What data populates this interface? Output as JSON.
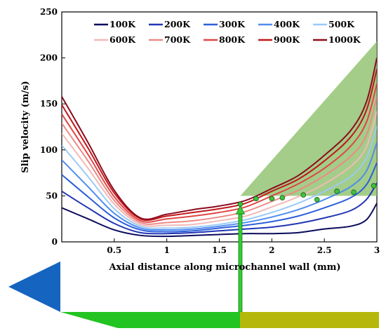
{
  "chart_data": {
    "type": "line",
    "xlabel": "Axial distance along microchannel wall (mm)",
    "ylabel": "Slip velocity (m/s)",
    "xlim": [
      0,
      3
    ],
    "ylim": [
      0,
      250
    ],
    "xticks": [
      "0.5",
      "1",
      "1.5",
      "2",
      "2.5",
      "3"
    ],
    "yticks": [
      "0",
      "50",
      "100",
      "150",
      "200",
      "250"
    ],
    "x_tick_values": [
      0.5,
      1,
      1.5,
      2,
      2.5,
      3
    ],
    "y_tick_values": [
      0,
      50,
      100,
      150,
      200,
      250
    ],
    "legend_position": "top",
    "series": [
      {
        "name": "100K",
        "color": "#0a0a5c",
        "x": [
          0,
          0.25,
          0.5,
          0.75,
          1.0,
          1.25,
          1.5,
          1.75,
          2.0,
          2.25,
          2.5,
          2.75,
          2.9,
          3.0
        ],
        "values": [
          37,
          25,
          13,
          7,
          6,
          7,
          8,
          9,
          9,
          10,
          14,
          17,
          24,
          42
        ]
      },
      {
        "name": "200K",
        "color": "#2236b5",
        "x": [
          0,
          0.25,
          0.5,
          0.75,
          1.0,
          1.25,
          1.5,
          1.75,
          2.0,
          2.25,
          2.5,
          2.75,
          2.9,
          3.0
        ],
        "values": [
          55,
          37,
          20,
          10,
          9,
          10,
          12,
          14,
          16,
          20,
          26,
          34,
          46,
          64
        ]
      },
      {
        "name": "300K",
        "color": "#2d5fd9",
        "x": [
          0,
          0.25,
          0.5,
          0.75,
          1.0,
          1.25,
          1.5,
          1.75,
          2.0,
          2.25,
          2.5,
          2.75,
          2.9,
          3.0
        ],
        "values": [
          73,
          49,
          26,
          13,
          11,
          12,
          15,
          18,
          22,
          28,
          37,
          48,
          62,
          86
        ]
      },
      {
        "name": "400K",
        "color": "#4f8cf0",
        "x": [
          0,
          0.25,
          0.5,
          0.75,
          1.0,
          1.25,
          1.5,
          1.75,
          2.0,
          2.25,
          2.5,
          2.75,
          2.9,
          3.0
        ],
        "values": [
          89,
          60,
          31,
          15,
          13,
          14,
          17,
          21,
          27,
          35,
          46,
          60,
          77,
          108
        ]
      },
      {
        "name": "500K",
        "color": "#9ccaf5",
        "x": [
          0,
          0.25,
          0.5,
          0.75,
          1.0,
          1.25,
          1.5,
          1.75,
          2.0,
          2.25,
          2.5,
          2.75,
          2.9,
          3.0
        ],
        "values": [
          105,
          71,
          36,
          17,
          15,
          16,
          19,
          24,
          32,
          42,
          55,
          71,
          91,
          126
        ]
      },
      {
        "name": "600K",
        "color": "#f2b9b6",
        "x": [
          0,
          0.25,
          0.5,
          0.75,
          1.0,
          1.25,
          1.5,
          1.75,
          2.0,
          2.25,
          2.5,
          2.75,
          2.9,
          3.0
        ],
        "values": [
          118,
          80,
          41,
          19,
          18,
          19,
          23,
          28,
          38,
          49,
          63,
          82,
          103,
          142
        ]
      },
      {
        "name": "700K",
        "color": "#ec8a86",
        "x": [
          0,
          0.25,
          0.5,
          0.75,
          1.0,
          1.25,
          1.5,
          1.75,
          2.0,
          2.25,
          2.5,
          2.75,
          2.9,
          3.0
        ],
        "values": [
          129,
          88,
          45,
          21,
          21,
          23,
          27,
          33,
          44,
          56,
          72,
          93,
          116,
          158
        ]
      },
      {
        "name": "800K",
        "color": "#e04646",
        "x": [
          0,
          0.25,
          0.5,
          0.75,
          1.0,
          1.25,
          1.5,
          1.75,
          2.0,
          2.25,
          2.5,
          2.75,
          2.9,
          3.0
        ],
        "values": [
          139,
          95,
          49,
          23,
          25,
          28,
          32,
          38,
          50,
          63,
          80,
          104,
          130,
          172
        ]
      },
      {
        "name": "900K",
        "color": "#c01818",
        "x": [
          0,
          0.25,
          0.5,
          0.75,
          1.0,
          1.25,
          1.5,
          1.75,
          2.0,
          2.25,
          2.5,
          2.75,
          2.9,
          3.0
        ],
        "values": [
          149,
          102,
          53,
          25,
          28,
          32,
          36,
          42,
          55,
          68,
          88,
          114,
          143,
          188
        ]
      },
      {
        "name": "1000K",
        "color": "#8b0a1e",
        "x": [
          0,
          0.25,
          0.5,
          0.75,
          1.0,
          1.25,
          1.5,
          1.75,
          2.0,
          2.25,
          2.5,
          2.75,
          2.9,
          3.0
        ],
        "values": [
          158,
          108,
          56,
          26,
          30,
          35,
          39,
          45,
          58,
          72,
          94,
          121,
          152,
          200
        ]
      }
    ],
    "markers": {
      "color": "#3cc43c",
      "points": [
        {
          "x": 1.7,
          "y": 41
        },
        {
          "x": 1.85,
          "y": 47
        },
        {
          "x": 2.0,
          "y": 47
        },
        {
          "x": 2.1,
          "y": 48
        },
        {
          "x": 2.3,
          "y": 51
        },
        {
          "x": 2.43,
          "y": 46
        },
        {
          "x": 2.62,
          "y": 55
        },
        {
          "x": 2.78,
          "y": 54
        },
        {
          "x": 2.97,
          "y": 61
        }
      ]
    },
    "shaded_region": {
      "color": "#8cc06a",
      "polygon": [
        {
          "x": 1.7,
          "y": 50
        },
        {
          "x": 2.0,
          "y": 50
        },
        {
          "x": 3.0,
          "y": 50
        },
        {
          "x": 3.0,
          "y": 218
        }
      ]
    },
    "arrow": {
      "x": 1.7,
      "color": "#33cc33"
    }
  },
  "schematic": {
    "triangle_color": "#1565c0",
    "bar_green": "#22c422",
    "bar_olive": "#b5b80a"
  }
}
